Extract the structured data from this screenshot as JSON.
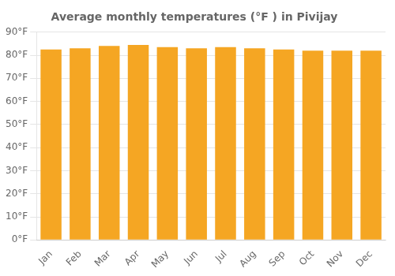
{
  "chart_data": {
    "type": "bar",
    "title": "Average monthly temperatures (°F ) in Pivijay",
    "categories": [
      "Jan",
      "Feb",
      "Mar",
      "Apr",
      "May",
      "Jun",
      "Jul",
      "Aug",
      "Sep",
      "Oct",
      "Nov",
      "Dec"
    ],
    "values": [
      82.5,
      83.0,
      84.0,
      84.5,
      83.5,
      83.0,
      83.5,
      83.0,
      82.5,
      82.0,
      82.0,
      82.0
    ],
    "color": "#F5A623",
    "ylim": [
      0,
      90
    ],
    "yticks": [
      {
        "value": 0,
        "label": "0°F"
      },
      {
        "value": 10,
        "label": "10°F"
      },
      {
        "value": 20,
        "label": "20°F"
      },
      {
        "value": 30,
        "label": "30°F"
      },
      {
        "value": 40,
        "label": "40°F"
      },
      {
        "value": 50,
        "label": "50°F"
      },
      {
        "value": 60,
        "label": "60°F"
      },
      {
        "value": 70,
        "label": "70°F"
      },
      {
        "value": 80,
        "label": "80°F"
      },
      {
        "value": 90,
        "label": "90°F"
      }
    ],
    "grid": "y"
  }
}
